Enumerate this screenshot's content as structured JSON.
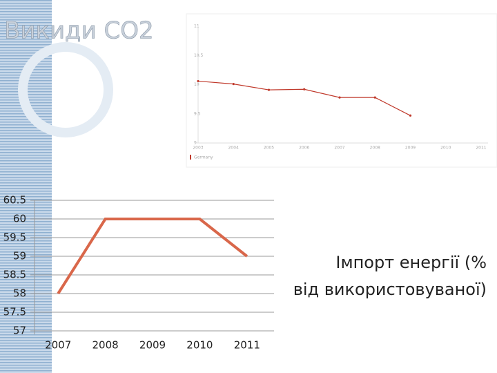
{
  "title": "Викиди CO2",
  "chart_data": [
    {
      "type": "line",
      "categories": [
        "2003",
        "2004",
        "2005",
        "2006",
        "2007",
        "2008",
        "2009",
        "2010",
        "2011"
      ],
      "series": [
        {
          "name": "Germany",
          "color": "#c0392b",
          "values": [
            10.06,
            10.01,
            9.91,
            9.92,
            9.78,
            9.78,
            9.47,
            null,
            null
          ]
        }
      ],
      "ylim": [
        9,
        11
      ],
      "yticks": [
        9,
        9.5,
        10,
        10.5,
        11
      ],
      "grid": false,
      "legend": "bottom"
    },
    {
      "type": "line",
      "categories": [
        "2007",
        "2008",
        "2009",
        "2010",
        "2011"
      ],
      "series": [
        {
          "name": "Імпорт енергії (% від використовуваної)",
          "color": "#d9674a",
          "values": [
            58,
            60,
            60,
            60,
            59
          ]
        }
      ],
      "ylim": [
        57,
        60.5
      ],
      "yticks": [
        57,
        57.5,
        58,
        58.5,
        59,
        59.5,
        60,
        60.5
      ],
      "grid": true,
      "legend": "right"
    }
  ]
}
